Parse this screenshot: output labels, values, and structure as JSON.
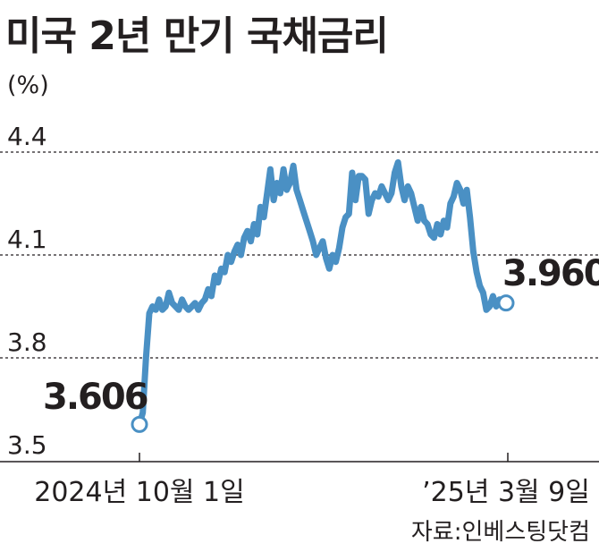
{
  "chart_data": {
    "type": "line",
    "title": "미국 2년 만기 국채금리",
    "unit": "(%)",
    "ylim": [
      3.5,
      4.4
    ],
    "y_ticks": [
      "3.5",
      "3.8",
      "4.1",
      "4.4"
    ],
    "x_tick_labels": [
      "2024년 10월 1일",
      "’25년 3월 9일"
    ],
    "grid": "dotted horizontal lines at 3.8, 4.1, 4.4",
    "line_color": "#4a90c4",
    "annotations": {
      "start_value": "3.606",
      "end_value": "3.960"
    },
    "series": [
      {
        "values": [
          3.606,
          3.64,
          3.8,
          3.93,
          3.95,
          3.94,
          3.97,
          3.94,
          3.95,
          3.99,
          3.96,
          3.95,
          3.94,
          3.97,
          3.95,
          3.94,
          3.95,
          3.96,
          3.94,
          3.96,
          3.97,
          4.0,
          3.98,
          4.04,
          4.02,
          4.06,
          4.05,
          4.1,
          4.08,
          4.11,
          4.13,
          4.1,
          4.15,
          4.17,
          4.14,
          4.19,
          4.16,
          4.24,
          4.21,
          4.28,
          4.35,
          4.26,
          4.31,
          4.28,
          4.35,
          4.29,
          4.31,
          4.36,
          4.29,
          4.26,
          4.23,
          4.2,
          4.17,
          4.14,
          4.1,
          4.12,
          4.14,
          4.09,
          4.06,
          4.1,
          4.08,
          4.12,
          4.18,
          4.21,
          4.22,
          4.34,
          4.26,
          4.33,
          4.33,
          4.32,
          4.22,
          4.26,
          4.28,
          4.27,
          4.3,
          4.28,
          4.26,
          4.28,
          4.34,
          4.37,
          4.3,
          4.26,
          4.3,
          4.28,
          4.24,
          4.2,
          4.24,
          4.2,
          4.19,
          4.16,
          4.15,
          4.19,
          4.16,
          4.2,
          4.18,
          4.25,
          4.27,
          4.31,
          4.29,
          4.25,
          4.29,
          4.21,
          4.11,
          4.05,
          4.01,
          3.99,
          3.94,
          3.95,
          3.98,
          3.95,
          3.97,
          3.97,
          3.96
        ]
      }
    ]
  }
}
